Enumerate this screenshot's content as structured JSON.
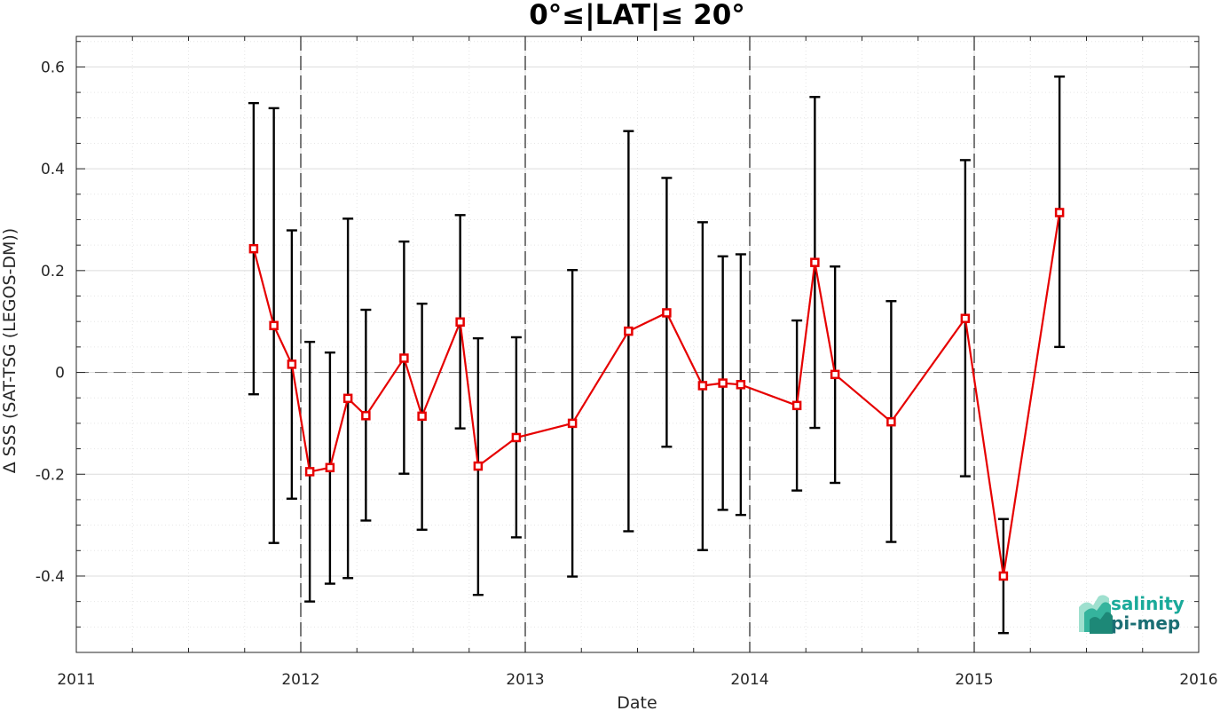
{
  "chart_data": {
    "type": "line",
    "title": "0°≤|LAT|≤ 20°",
    "xlabel": "Date",
    "ylabel": "Δ SSS (SAT-TSG (LEGOS-DM))",
    "xlim": [
      2011,
      2016
    ],
    "ylim": [
      -0.55,
      0.66
    ],
    "x_ticks": [
      "2011",
      "2012",
      "2013",
      "2014",
      "2015",
      "2016"
    ],
    "y_ticks": [
      "-0.4",
      "-0.2",
      "0",
      "0.2",
      "0.4",
      "0.6"
    ],
    "grid": true,
    "reference_line_y": 0,
    "year_boundaries": [
      2012,
      2013,
      2014,
      2015
    ],
    "series": [
      {
        "color": "#e60000",
        "marker": "square",
        "x": [
          2011.79,
          2011.88,
          2011.96,
          2012.04,
          2012.13,
          2012.21,
          2012.29,
          2012.46,
          2012.54,
          2012.71,
          2012.79,
          2012.96,
          2013.21,
          2013.46,
          2013.63,
          2013.79,
          2013.88,
          2013.96,
          2014.21,
          2014.29,
          2014.38,
          2014.63,
          2014.96,
          2015.13,
          2015.38
        ],
        "y": [
          0.243,
          0.092,
          0.016,
          -0.195,
          -0.187,
          -0.051,
          -0.085,
          0.028,
          -0.086,
          0.099,
          -0.184,
          -0.128,
          -0.1,
          0.081,
          0.117,
          -0.026,
          -0.021,
          -0.024,
          -0.065,
          0.216,
          -0.004,
          -0.097,
          0.106,
          -0.4,
          0.314
        ],
        "err_low": [
          -0.043,
          -0.335,
          -0.248,
          -0.45,
          -0.415,
          -0.404,
          -0.291,
          -0.199,
          -0.309,
          -0.11,
          -0.437,
          -0.324,
          -0.401,
          -0.312,
          -0.146,
          -0.349,
          -0.27,
          -0.28,
          -0.232,
          -0.109,
          -0.217,
          -0.333,
          -0.204,
          -0.512,
          0.05
        ],
        "err_high": [
          0.529,
          0.519,
          0.279,
          0.06,
          0.039,
          0.302,
          0.123,
          0.257,
          0.135,
          0.309,
          0.067,
          0.069,
          0.201,
          0.474,
          0.382,
          0.295,
          0.228,
          0.232,
          0.102,
          0.541,
          0.208,
          0.14,
          0.417,
          -0.288,
          0.581
        ]
      }
    ]
  },
  "logo": {
    "line1": "salinity",
    "line2": "pi-mep",
    "color1": "#1aaa9a",
    "color2": "#1a6e73"
  }
}
